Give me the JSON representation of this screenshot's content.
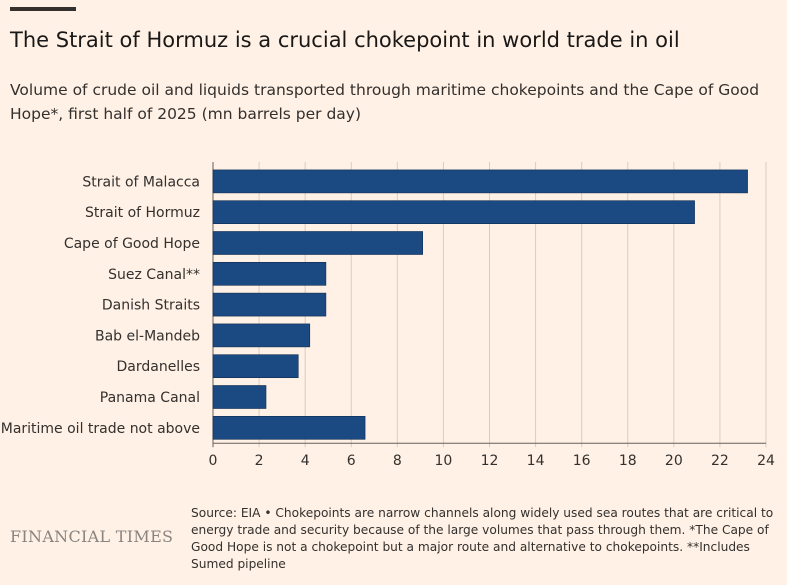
{
  "header": {
    "title": "The Strait of Hormuz is a crucial chokepoint in world trade in oil",
    "subtitle": "Volume of crude oil and liquids transported through maritime chokepoints and the Cape of Good Hope*, first half of 2025 (mn barrels per day)"
  },
  "footer": {
    "logo": "FINANCIAL TIMES",
    "source": "Source: EIA • Chokepoints are narrow channels along widely used sea routes that are critical to energy trade and security because of the large volumes that pass through them. *The Cape of Good Hope is not a chokepoint but a major route and alternative to chokepoints. **Includes Sumed pipeline"
  },
  "chart_data": {
    "type": "bar",
    "orientation": "horizontal",
    "categories": [
      "Strait of Malacca",
      "Strait of Hormuz",
      "Cape of Good Hope",
      "Suez Canal**",
      "Danish Straits",
      "Bab el-Mandeb",
      "Dardanelles",
      "Panama Canal",
      "Maritime oil trade not above"
    ],
    "values": [
      23.2,
      20.9,
      9.1,
      4.9,
      4.9,
      4.2,
      3.7,
      2.3,
      6.6
    ],
    "xlim": [
      0,
      24
    ],
    "xticks": [
      "0",
      "2",
      "4",
      "6",
      "8",
      "10",
      "12",
      "14",
      "16",
      "18",
      "20",
      "22",
      "24"
    ],
    "grid": true,
    "bar_color": "#1b4a82"
  }
}
